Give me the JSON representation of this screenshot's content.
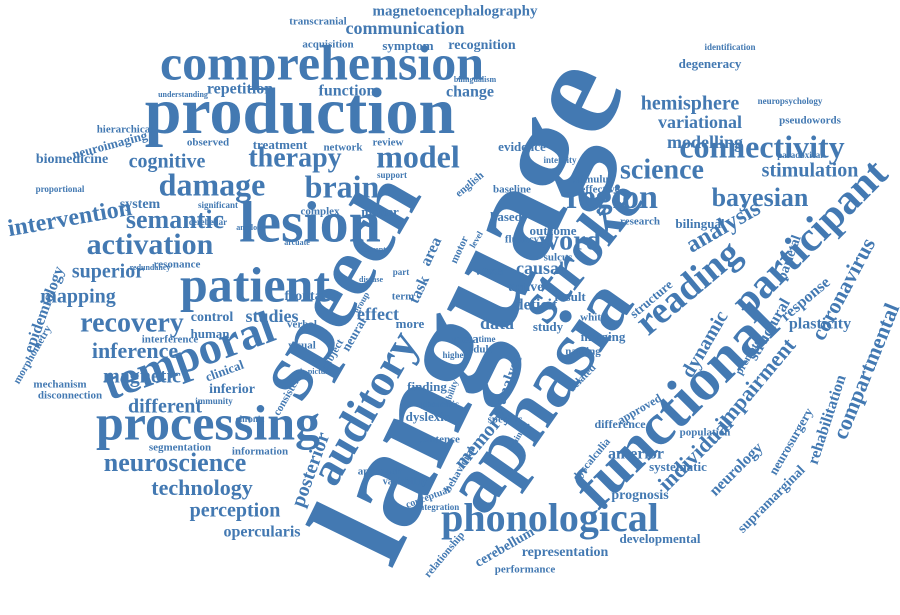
{
  "words": [
    "language",
    "speech",
    "aphasia",
    "stroke",
    "functional",
    "production",
    "comprehension",
    "lesion",
    "patient",
    "processing",
    "temporal",
    "auditory",
    "participant",
    "phonological",
    "reading",
    "connectivity",
    "brain",
    "model",
    "therapy",
    "damage",
    "region",
    "science",
    "word",
    "bayesian",
    "stimulation",
    "activation",
    "semantic",
    "intervention",
    "recovery",
    "inference",
    "magnetic",
    "neuroscience",
    "technology",
    "different",
    "mapping",
    "superior",
    "cognitive",
    "hemisphere",
    "modelling",
    "variational",
    "analysis",
    "coronavirus",
    "compartmental",
    "impairment",
    "dynamic",
    "rehabilitation",
    "plasticity",
    "response",
    "parietal",
    "structural",
    "individual",
    "neurology",
    "neurosurgery",
    "supramarginal",
    "anterior",
    "systematic",
    "prognosis",
    "population",
    "difference",
    "approved",
    "developmental",
    "representation",
    "performance",
    "cerebellum",
    "relationship",
    "perception",
    "opercularis",
    "memory",
    "posterior",
    "communication",
    "magnetoencephalography",
    "transcranial",
    "acquisition",
    "symptom",
    "recognition",
    "repetition",
    "function",
    "change",
    "treatment",
    "network",
    "review",
    "evidence",
    "hierarchical",
    "neuroimaging",
    "biomedicine",
    "observed",
    "proportional",
    "system",
    "epidemiology",
    "morphometry",
    "mechanism",
    "disconnection",
    "resonance",
    "control",
    "human",
    "studies",
    "interference",
    "clinical",
    "inferior",
    "consistency",
    "segmentation",
    "information",
    "visual",
    "frontal",
    "verbal",
    "matter",
    "complex",
    "effect",
    "neural",
    "subject",
    "finding",
    "dyslexia",
    "sentence",
    "approach",
    "variability",
    "task",
    "area",
    "data",
    "deficit",
    "causal",
    "active",
    "analyse",
    "study",
    "result",
    "voxel",
    "meta",
    "based",
    "outcome",
    "fluency",
    "imaging",
    "naming",
    "related",
    "research",
    "bilingual",
    "effective",
    "baseline",
    "stimulus",
    "sulcus",
    "structure",
    "premotor",
    "degeneracy",
    "identification",
    "pseudowords",
    "neuropsychology",
    "paradoxical",
    "intensity",
    "english",
    "support",
    "motor",
    "conceptual",
    "integration",
    "specific",
    "behavioral",
    "training",
    "dyscalculia",
    "adult",
    "higher",
    "phonemic",
    "white",
    "part",
    "term",
    "more",
    "chronic",
    "immunity",
    "understanding",
    "bilingualism",
    "significant",
    "cerebellar",
    "redundancy",
    "amyloid",
    "picture",
    "disease",
    "arcuate",
    "current",
    "group",
    "ability",
    "level",
    "time"
  ]
}
